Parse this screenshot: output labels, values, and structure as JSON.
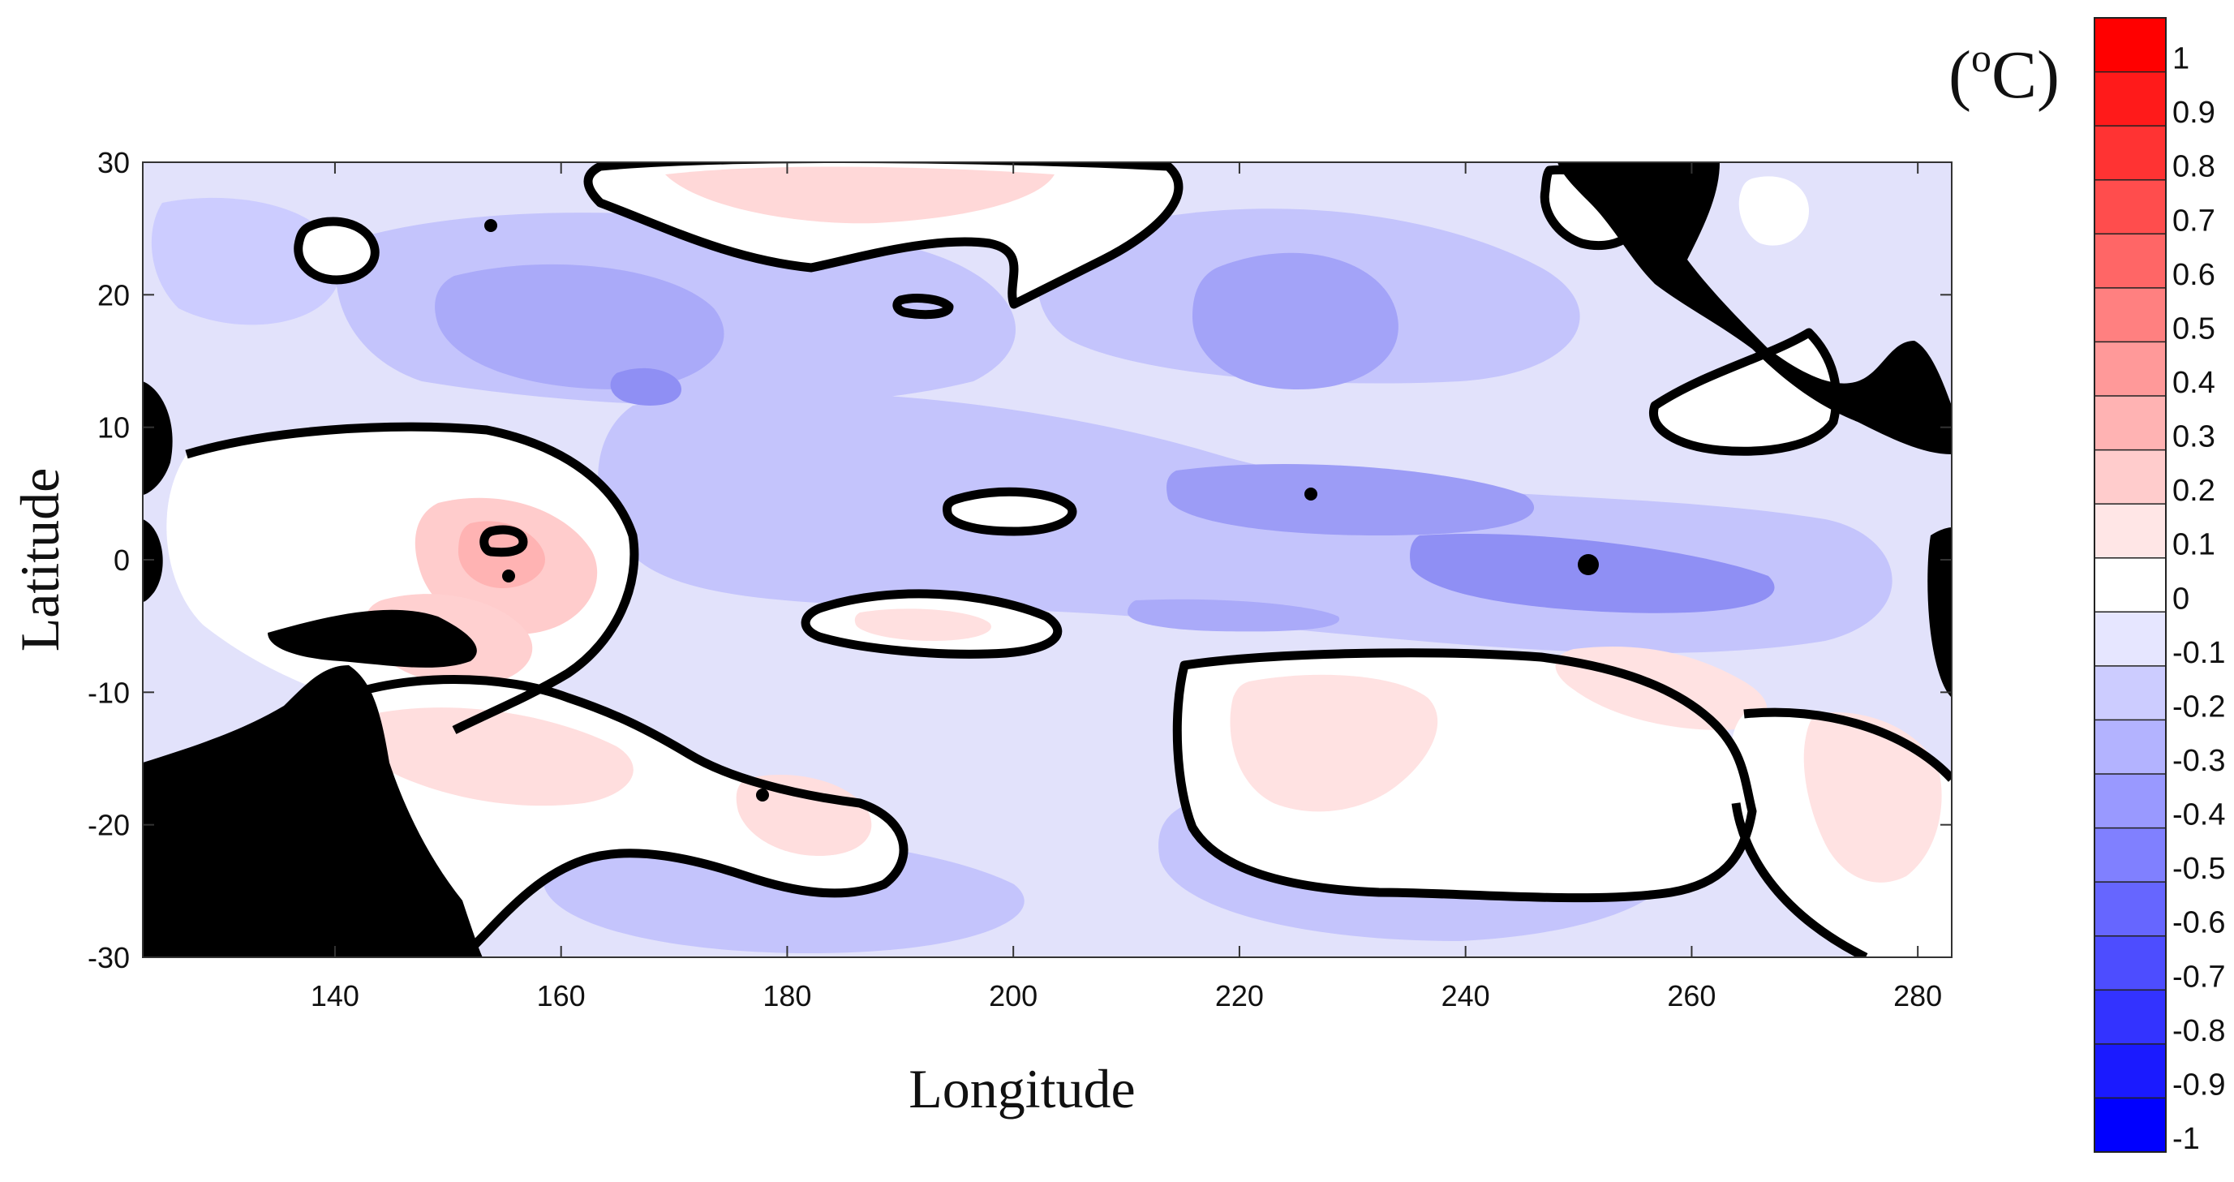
{
  "map": {
    "x_axis": {
      "title": "Longitude",
      "range": [
        123,
        283
      ],
      "ticks": [
        140,
        160,
        180,
        200,
        220,
        240,
        260,
        280
      ]
    },
    "y_axis": {
      "title": "Latitude",
      "range": [
        -30,
        30
      ],
      "ticks": [
        30,
        20,
        10,
        0,
        -10,
        -20,
        -30
      ]
    },
    "land_color": "#000000",
    "contour_color": "#000000",
    "colorbar": {
      "unit_text": "(",
      "unit_sup": "o",
      "unit_tail": "C)",
      "levels": [
        "1",
        "0.9",
        "0.8",
        "0.7",
        "0.6",
        "0.5",
        "0.4",
        "0.3",
        "0.2",
        "0.1",
        "0",
        "-0.1",
        "-0.2",
        "-0.3",
        "-0.4",
        "-0.5",
        "-0.6",
        "-0.7",
        "-0.8",
        "-0.9",
        "-1"
      ],
      "colors": [
        "#ff0000",
        "#ff1a1a",
        "#ff3333",
        "#ff4d4d",
        "#ff6666",
        "#ff8080",
        "#ff9999",
        "#ffb3b3",
        "#ffcccc",
        "#ffe6e6",
        "#ffffff",
        "#e6e6ff",
        "#ccccff",
        "#b3b3ff",
        "#9999ff",
        "#8080ff",
        "#6666ff",
        "#4d4dff",
        "#3333ff",
        "#1a1aff",
        "#0000ff"
      ]
    }
  }
}
